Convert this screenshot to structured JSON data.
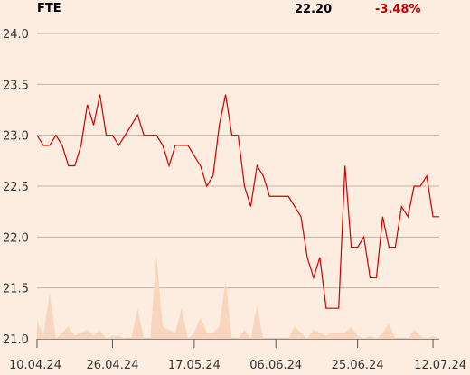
{
  "header": {
    "ticker": "FTE",
    "price": "22.20",
    "change": "-3.48%"
  },
  "colors": {
    "background": "#fcede0",
    "line": "#cc0000",
    "volume": "#f8d5bd",
    "grid": "#bfb3a6",
    "change": "#c00000"
  },
  "chart_data": {
    "type": "line",
    "title": "",
    "xlabel": "",
    "ylabel": "",
    "ylim": [
      21.0,
      24.0
    ],
    "y_ticks": [
      "24.0",
      "23.5",
      "23.0",
      "22.5",
      "22.0",
      "21.5",
      "21.0"
    ],
    "x_tick_labels": [
      "10.04.24",
      "26.04.24",
      "17.05.24",
      "06.06.24",
      "25.06.24",
      "12.07.24"
    ],
    "x_tick_index": [
      0,
      12,
      25,
      38,
      51,
      63
    ],
    "grid": true,
    "series": [
      {
        "values": [
          23.0,
          22.9,
          22.9,
          23.0,
          22.9,
          22.7,
          22.7,
          22.9,
          23.3,
          23.1,
          23.4,
          23.0,
          23.0,
          22.9,
          23.0,
          23.1,
          23.2,
          23.0,
          23.0,
          23.0,
          22.9,
          22.7,
          22.9,
          22.9,
          22.9,
          22.8,
          22.7,
          22.5,
          22.6,
          23.1,
          23.4,
          23.0,
          23.0,
          22.5,
          22.3,
          22.7,
          22.6,
          22.4,
          22.4,
          22.4,
          22.4,
          22.3,
          22.2,
          21.8,
          21.6,
          21.8,
          21.3,
          21.3,
          21.3,
          22.7,
          21.9,
          21.9,
          22.0,
          21.6,
          21.6,
          22.2,
          21.9,
          21.9,
          22.3,
          22.2,
          22.5,
          22.5,
          22.6,
          22.2,
          22.2
        ]
      }
    ],
    "volume": [
      0.06,
      0.01,
      0.15,
      0.0,
      0.02,
      0.04,
      0.01,
      0.02,
      0.03,
      0.01,
      0.03,
      0.0,
      0.01,
      0.01,
      0.0,
      0.0,
      0.1,
      0.0,
      0.0,
      0.27,
      0.04,
      0.03,
      0.02,
      0.1,
      0.0,
      0.02,
      0.07,
      0.02,
      0.02,
      0.04,
      0.19,
      0.0,
      0.0,
      0.03,
      0.0,
      0.11,
      0.0,
      0.0,
      0.0,
      0.0,
      0.0,
      0.04,
      0.02,
      0.0,
      0.03,
      0.02,
      0.01,
      0.02,
      0.02,
      0.02,
      0.04,
      0.01,
      0.0,
      0.01,
      0.0,
      0.02,
      0.05,
      0.0,
      0.0,
      0.0,
      0.03,
      0.01,
      0.0,
      0.01,
      0.0
    ]
  }
}
